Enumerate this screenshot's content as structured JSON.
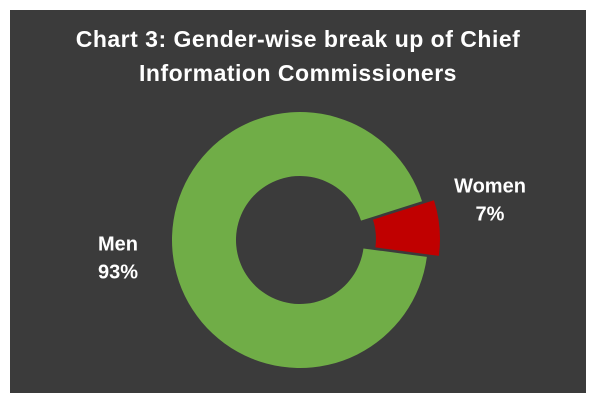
{
  "chart_data": {
    "type": "donut",
    "title": "Chart 3: Gender-wise break up of Chief Information Commissioners",
    "categories": [
      "Men",
      "Women"
    ],
    "values": [
      93,
      7
    ],
    "value_labels": [
      "93%",
      "7%"
    ],
    "colors": [
      "#70ad47",
      "#c00000"
    ]
  }
}
